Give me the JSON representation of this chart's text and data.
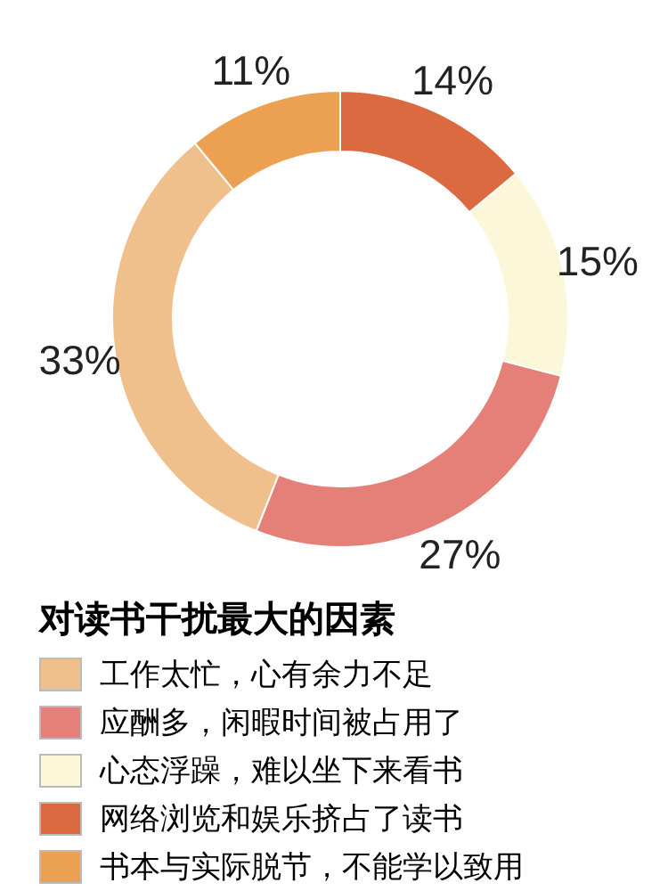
{
  "chart_data": {
    "type": "donut",
    "legend_title": "对读书干扰最大的因素",
    "categories": [
      "工作太忙，心有余力不足",
      "应酬多，闲暇时间被占用了",
      "心态浮躁，难以坐下来看书",
      "网络浏览和娱乐挤占了读书",
      "书本与实际脱节，不能学以致用"
    ],
    "values": [
      33,
      27,
      15,
      14,
      11
    ],
    "value_labels": [
      "33%",
      "27%",
      "15%",
      "14%",
      "11%"
    ],
    "colors": [
      "#f0c08c",
      "#e48078",
      "#fbf7d8",
      "#dc6a40",
      "#eca052"
    ],
    "legend": "bottom"
  }
}
